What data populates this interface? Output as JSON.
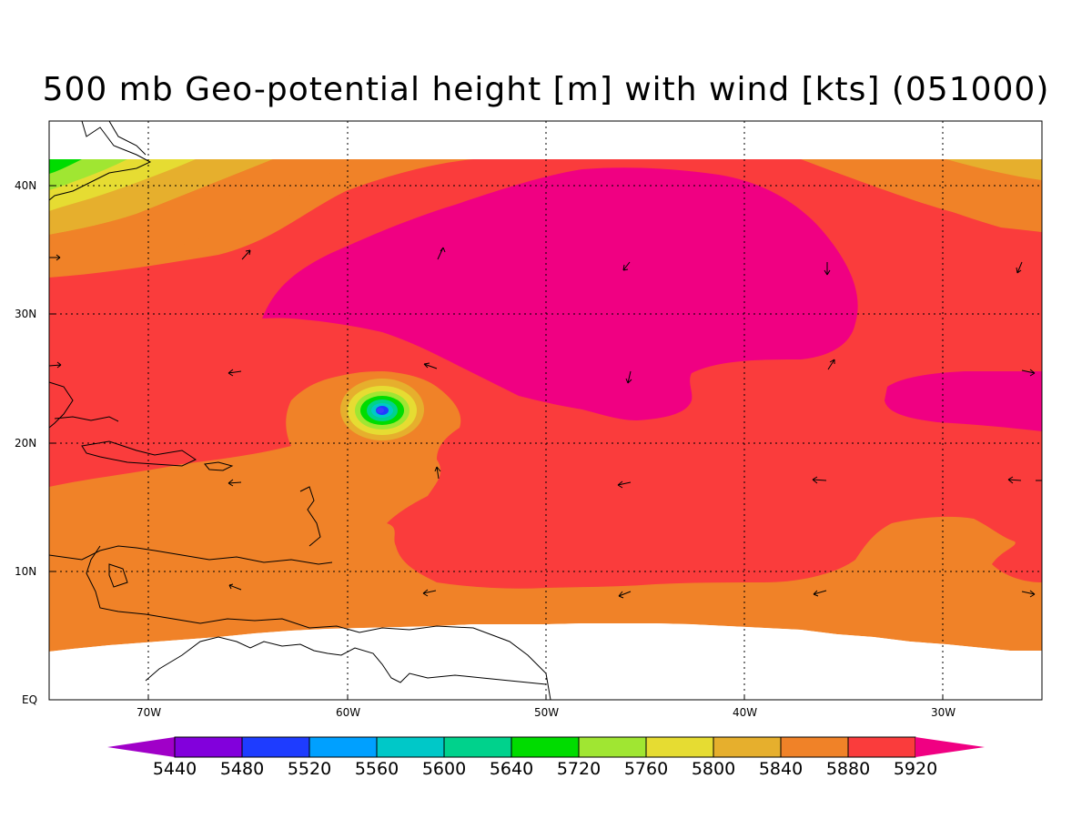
{
  "title": "500 mb Geo-potential height [m] with wind [kts] (051000)",
  "map": {
    "lat_labels": [
      "40N",
      "30N",
      "20N",
      "10N",
      "EQ"
    ],
    "lon_labels": [
      "70W",
      "60W",
      "50W",
      "40W",
      "30W"
    ]
  },
  "colorbar": {
    "labels": [
      "5440",
      "5480",
      "5520",
      "5560",
      "5600",
      "5640",
      "5720",
      "5760",
      "5800",
      "5840",
      "5880",
      "5920"
    ],
    "colors": [
      "#a000c8",
      "#8200dc",
      "#1e3cff",
      "#00a0ff",
      "#00c8c8",
      "#00d28c",
      "#00dc00",
      "#a0e632",
      "#e6dc32",
      "#e6af2d",
      "#f08228",
      "#fa3c3c",
      "#f00082"
    ]
  },
  "colors": {
    "high_5920": "#f00082",
    "band_5880": "#fa3c3c",
    "band_5840": "#f08228",
    "band_5800": "#e6af2d",
    "band_5760": "#e6dc32",
    "band_5720": "#a0e632",
    "band_5640": "#00dc00"
  }
}
